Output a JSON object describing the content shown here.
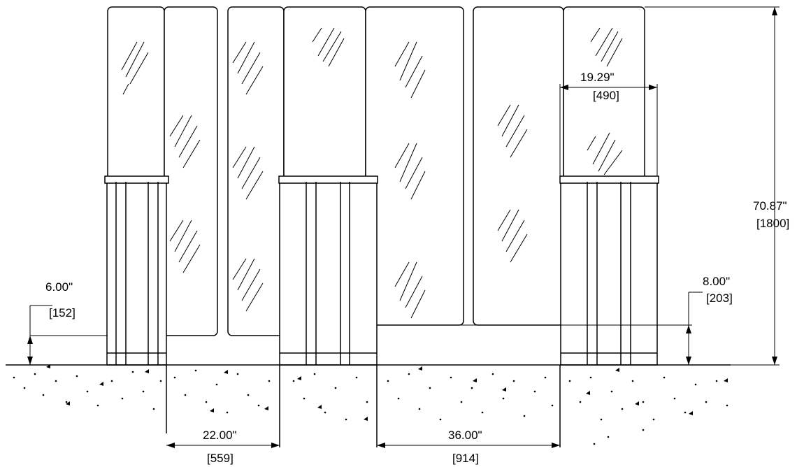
{
  "dimensions": {
    "base_height_left": {
      "imperial": "6.00\"",
      "metric": "[152]"
    },
    "base_height_right": {
      "imperial": "8.00\"",
      "metric": "[203]"
    },
    "panel_width": {
      "imperial": "19.29\"",
      "metric": "[490]"
    },
    "total_height": {
      "imperial": "70.87\"",
      "metric": "[1800]"
    },
    "post_gap_small": {
      "imperial": "22.00\"",
      "metric": "[559]"
    },
    "post_gap_large": {
      "imperial": "36.00\"",
      "metric": "[914]"
    }
  }
}
